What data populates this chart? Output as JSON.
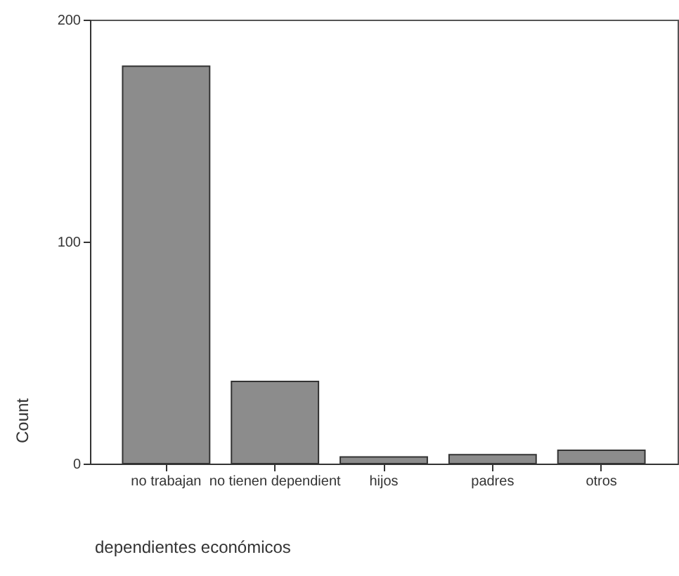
{
  "chart_data": {
    "type": "bar",
    "xlabel": "dependientes económicos",
    "ylabel": "Count",
    "categories": [
      "no trabajan",
      "no tienen dependient",
      "hijos",
      "padres",
      "otros"
    ],
    "values": [
      179,
      37,
      3,
      4,
      6
    ],
    "color": "#8c8c8c",
    "ylim": [
      0,
      200
    ],
    "yticks": [
      0,
      100,
      200
    ],
    "grid": false
  }
}
